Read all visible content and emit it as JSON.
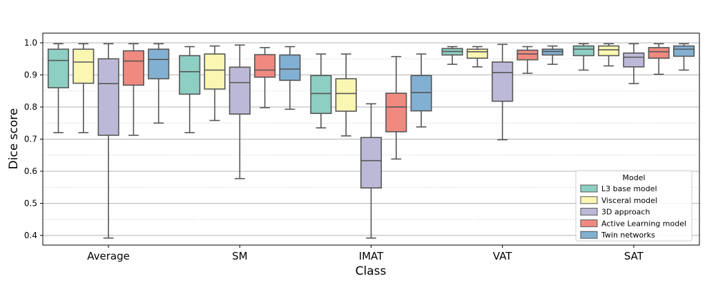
{
  "chart_data": {
    "type": "boxplot",
    "xlabel": "Class",
    "ylabel": "Dice score",
    "ylim": [
      0.37,
      1.03
    ],
    "yticks": [
      0.4,
      0.5,
      0.6,
      0.7,
      0.8,
      0.9,
      1.0
    ],
    "ytick_labels": [
      "0.4",
      "0.5",
      "0.6",
      "0.7",
      "0.8",
      "0.9",
      "1.0"
    ],
    "grid": {
      "major": true,
      "minor_dotted": true
    },
    "categories": [
      "Average",
      "SM",
      "IMAT",
      "VAT",
      "SAT"
    ],
    "legend": {
      "title": "Model",
      "position": "lower-right"
    },
    "series": [
      {
        "name": "L3 base model",
        "color": "#8dcfc2",
        "boxes": [
          {
            "whislo": 0.72,
            "q1": 0.86,
            "med": 0.945,
            "q3": 0.98,
            "whishi": 0.997
          },
          {
            "whislo": 0.72,
            "q1": 0.84,
            "med": 0.91,
            "q3": 0.96,
            "whishi": 0.988
          },
          {
            "whislo": 0.735,
            "q1": 0.78,
            "med": 0.842,
            "q3": 0.898,
            "whishi": 0.965
          },
          {
            "whislo": 0.933,
            "q1": 0.962,
            "med": 0.973,
            "q3": 0.982,
            "whishi": 0.988
          },
          {
            "whislo": 0.915,
            "q1": 0.96,
            "med": 0.98,
            "q3": 0.99,
            "whishi": 0.997
          }
        ]
      },
      {
        "name": "Visceral model",
        "color": "#f9f7b2",
        "boxes": [
          {
            "whislo": 0.72,
            "q1": 0.874,
            "med": 0.94,
            "q3": 0.98,
            "whishi": 0.997
          },
          {
            "whislo": 0.758,
            "q1": 0.856,
            "med": 0.915,
            "q3": 0.965,
            "whishi": 0.99
          },
          {
            "whislo": 0.71,
            "q1": 0.787,
            "med": 0.842,
            "q3": 0.888,
            "whishi": 0.965
          },
          {
            "whislo": 0.925,
            "q1": 0.952,
            "med": 0.972,
            "q3": 0.98,
            "whishi": 0.988
          },
          {
            "whislo": 0.928,
            "q1": 0.96,
            "med": 0.978,
            "q3": 0.99,
            "whishi": 0.997
          }
        ]
      },
      {
        "name": "3D approach",
        "color": "#bcb9d8",
        "boxes": [
          {
            "whislo": 0.392,
            "q1": 0.712,
            "med": 0.873,
            "q3": 0.95,
            "whishi": 0.997
          },
          {
            "whislo": 0.577,
            "q1": 0.778,
            "med": 0.876,
            "q3": 0.924,
            "whishi": 0.993
          },
          {
            "whislo": 0.392,
            "q1": 0.548,
            "med": 0.633,
            "q3": 0.705,
            "whishi": 0.81
          },
          {
            "whislo": 0.698,
            "q1": 0.818,
            "med": 0.907,
            "q3": 0.94,
            "whishi": 0.995
          },
          {
            "whislo": 0.873,
            "q1": 0.925,
            "med": 0.955,
            "q3": 0.968,
            "whishi": 0.997
          }
        ]
      },
      {
        "name": "Active Learning model",
        "color": "#f08a80",
        "boxes": [
          {
            "whislo": 0.712,
            "q1": 0.868,
            "med": 0.943,
            "q3": 0.975,
            "whishi": 0.997
          },
          {
            "whislo": 0.798,
            "q1": 0.893,
            "med": 0.915,
            "q3": 0.963,
            "whishi": 0.985
          },
          {
            "whislo": 0.638,
            "q1": 0.723,
            "med": 0.8,
            "q3": 0.843,
            "whishi": 0.957
          },
          {
            "whislo": 0.905,
            "q1": 0.947,
            "med": 0.965,
            "q3": 0.977,
            "whishi": 0.988
          },
          {
            "whislo": 0.902,
            "q1": 0.952,
            "med": 0.972,
            "q3": 0.985,
            "whishi": 0.997
          }
        ]
      },
      {
        "name": "Twin networks",
        "color": "#81b0d2",
        "boxes": [
          {
            "whislo": 0.75,
            "q1": 0.888,
            "med": 0.948,
            "q3": 0.98,
            "whishi": 0.997
          },
          {
            "whislo": 0.793,
            "q1": 0.883,
            "med": 0.918,
            "q3": 0.962,
            "whishi": 0.988
          },
          {
            "whislo": 0.738,
            "q1": 0.788,
            "med": 0.845,
            "q3": 0.898,
            "whishi": 0.965
          },
          {
            "whislo": 0.933,
            "q1": 0.962,
            "med": 0.973,
            "q3": 0.98,
            "whishi": 0.99
          },
          {
            "whislo": 0.915,
            "q1": 0.958,
            "med": 0.98,
            "q3": 0.99,
            "whishi": 0.997
          }
        ]
      }
    ]
  }
}
